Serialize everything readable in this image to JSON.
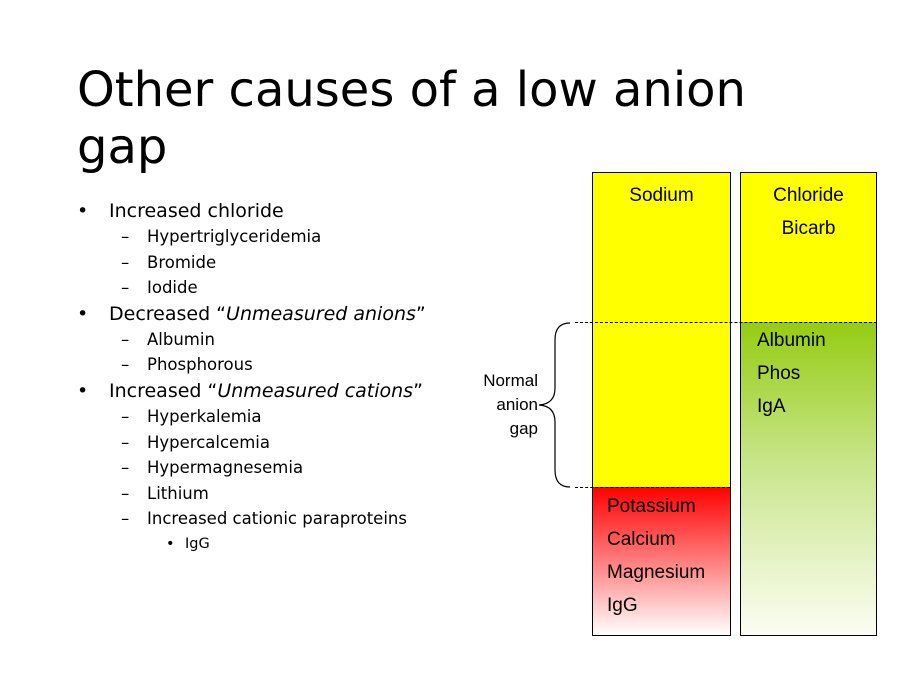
{
  "slide": {
    "title": "Other causes of a low anion gap"
  },
  "bullets": {
    "increased_chloride": "Increased chloride",
    "hypertriglyceridemia": "Hypertriglyceridemia",
    "bromide": "Bromide",
    "iodide": "Iodide",
    "decreased_prefix": "Decreased “",
    "unmeasured_anions": "Unmeasured anions",
    "quote_close_1": "”",
    "albumin": "Albumin",
    "phosphorous": "Phosphorous",
    "increased_prefix": "Increased “",
    "unmeasured_cations": "Unmeasured cations",
    "quote_close_2": "”",
    "hyperkalemia": "Hyperkalemia",
    "hypercalcemia": "Hypercalcemia",
    "hypermagnesemia": "Hypermagnesemia",
    "lithium": "Lithium",
    "cationic_paraproteins": "Increased cationic paraproteins",
    "igg": "IgG"
  },
  "diagram": {
    "cations_column": {
      "label": "Sodium",
      "unmeasured": [
        "Potassium",
        "Calcium",
        "Magnesium",
        "IgG"
      ]
    },
    "anions_column": {
      "labels": [
        "Chloride",
        "Bicarb"
      ],
      "unmeasured": [
        "Albumin",
        "Phos",
        "IgA"
      ]
    },
    "gap_label": [
      "Normal",
      "anion",
      "gap"
    ],
    "colors": {
      "measured": "#ffff00",
      "unmeasured_cations": "#ff0000",
      "unmeasured_anions": "#95cc12"
    }
  }
}
